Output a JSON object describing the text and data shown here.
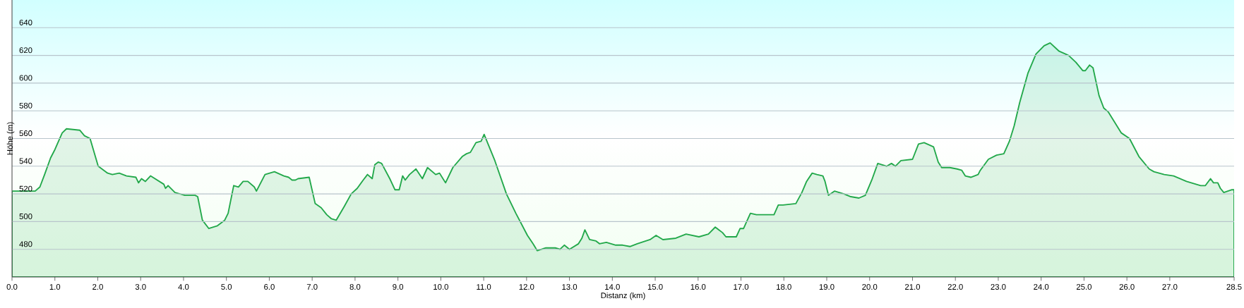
{
  "chart_data": {
    "type": "area",
    "xlabel": "Distanz  (km)",
    "ylabel": "Höhe (m)",
    "color": "#22a84a",
    "grid": "y",
    "xlim": [
      0,
      28.5
    ],
    "ylim": [
      460,
      660
    ],
    "yticks": [
      480,
      500,
      520,
      540,
      560,
      580,
      600,
      620,
      640
    ],
    "xticks": [
      {
        "value": 0,
        "label": "0.0"
      },
      {
        "value": 1,
        "label": "1.0"
      },
      {
        "value": 2,
        "label": "2.0"
      },
      {
        "value": 3,
        "label": "3.0"
      },
      {
        "value": 4,
        "label": "4.0"
      },
      {
        "value": 5,
        "label": "5.0"
      },
      {
        "value": 6,
        "label": "6.0"
      },
      {
        "value": 7,
        "label": "7.0"
      },
      {
        "value": 8,
        "label": "8.0"
      },
      {
        "value": 9,
        "label": "9.0"
      },
      {
        "value": 10,
        "label": "10.0"
      },
      {
        "value": 11,
        "label": "11.0"
      },
      {
        "value": 12,
        "label": "12.0"
      },
      {
        "value": 13,
        "label": "13.0"
      },
      {
        "value": 14,
        "label": "14.0"
      },
      {
        "value": 15,
        "label": "15.0"
      },
      {
        "value": 16,
        "label": "16.0"
      },
      {
        "value": 17,
        "label": "17.0"
      },
      {
        "value": 18,
        "label": "18.0"
      },
      {
        "value": 19,
        "label": "19.0"
      },
      {
        "value": 20,
        "label": "20.0"
      },
      {
        "value": 21,
        "label": "21.0"
      },
      {
        "value": 22,
        "label": "22.0"
      },
      {
        "value": 23,
        "label": "23.0"
      },
      {
        "value": 24,
        "label": "24.0"
      },
      {
        "value": 25,
        "label": "25.0"
      },
      {
        "value": 26,
        "label": "26.0"
      },
      {
        "value": 27,
        "label": "27.0"
      },
      {
        "value": 28.5,
        "label": "28.5"
      }
    ],
    "x": [
      0,
      0.54,
      0.65,
      0.76,
      0.9,
      1.0,
      1.17,
      1.27,
      1.58,
      1.69,
      1.82,
      2.01,
      2.23,
      2.34,
      2.5,
      2.67,
      2.89,
      2.95,
      3.02,
      3.11,
      3.23,
      3.54,
      3.58,
      3.64,
      3.8,
      4.03,
      4.27,
      4.33,
      4.44,
      4.59,
      4.79,
      4.96,
      5.04,
      5.17,
      5.28,
      5.39,
      5.5,
      5.65,
      5.7,
      5.9,
      6.12,
      6.34,
      6.45,
      6.53,
      6.61,
      6.67,
      6.93,
      7.07,
      7.21,
      7.34,
      7.45,
      7.56,
      7.75,
      7.91,
      8.05,
      8.19,
      8.29,
      8.4,
      8.46,
      8.54,
      8.62,
      8.81,
      8.93,
      9.03,
      9.11,
      9.17,
      9.27,
      9.42,
      9.57,
      9.69,
      9.88,
      9.97,
      10.11,
      10.28,
      10.5,
      10.6,
      10.69,
      10.82,
      10.94,
      11.01,
      11.26,
      11.53,
      11.75,
      12.02,
      12.15,
      12.25,
      12.45,
      12.67,
      12.78,
      12.88,
      13.0,
      13.21,
      13.29,
      13.36,
      13.47,
      13.62,
      13.7,
      13.86,
      14.08,
      14.24,
      14.41,
      14.58,
      14.88,
      15.02,
      15.18,
      15.48,
      15.72,
      16.02,
      16.24,
      16.4,
      16.57,
      16.65,
      16.89,
      16.98,
      17.06,
      17.22,
      17.36,
      17.77,
      17.87,
      17.98,
      18.28,
      18.42,
      18.53,
      18.66,
      18.77,
      18.91,
      18.96,
      19.04,
      19.18,
      19.4,
      19.56,
      19.75,
      19.9,
      20.05,
      20.19,
      20.4,
      20.51,
      20.6,
      20.73,
      21.0,
      21.14,
      21.27,
      21.49,
      21.6,
      21.68,
      21.87,
      22.04,
      22.15,
      22.23,
      22.36,
      22.53,
      22.58,
      22.77,
      22.96,
      23.13,
      23.26,
      23.37,
      23.5,
      23.69,
      23.88,
      24.07,
      24.21,
      24.42,
      24.64,
      24.81,
      24.97,
      25.03,
      25.13,
      25.21,
      25.35,
      25.46,
      25.57,
      25.87,
      26.06,
      26.28,
      26.52,
      26.63,
      26.87,
      27.09,
      27.39,
      27.72,
      27.83,
      27.95,
      28.02,
      28.12,
      28.18,
      28.26,
      28.45,
      28.5
    ],
    "values": [
      522,
      522,
      525,
      534,
      546,
      552,
      564,
      567,
      566,
      562,
      560,
      540,
      535,
      534,
      535,
      533,
      532,
      528,
      531,
      529,
      533,
      527,
      524,
      526,
      521,
      519,
      519,
      518,
      501,
      495,
      497,
      501,
      506,
      526,
      525,
      529,
      529,
      525,
      522,
      534,
      536,
      533,
      532,
      530,
      530,
      531,
      532,
      513,
      510,
      505,
      502,
      501,
      511,
      520,
      524,
      530,
      534,
      531,
      541,
      543,
      542,
      531,
      523,
      523,
      533,
      530,
      534,
      538,
      531,
      539,
      534,
      535,
      528,
      539,
      547,
      549,
      550,
      557,
      558,
      563,
      544,
      520,
      506,
      490,
      484,
      479,
      481,
      481,
      480,
      483,
      480,
      484,
      488,
      494,
      487,
      486,
      484,
      485,
      483,
      483,
      482,
      484,
      487,
      490,
      487,
      488,
      491,
      489,
      491,
      496,
      492,
      489,
      489,
      495,
      495,
      506,
      505,
      505,
      512,
      512,
      513,
      521,
      529,
      535,
      534,
      533,
      529,
      519,
      522,
      520,
      518,
      517,
      519,
      530,
      542,
      540,
      542,
      540,
      544,
      545,
      556,
      557,
      554,
      543,
      539,
      539,
      538,
      537,
      533,
      532,
      534,
      537,
      545,
      548,
      549,
      558,
      569,
      586,
      607,
      621,
      627,
      629,
      623,
      620,
      615,
      609,
      609,
      613,
      611,
      591,
      582,
      579,
      564,
      560,
      547,
      538,
      536,
      534,
      533,
      529,
      526,
      526,
      531,
      528,
      528,
      524,
      521,
      523,
      523
    ]
  }
}
